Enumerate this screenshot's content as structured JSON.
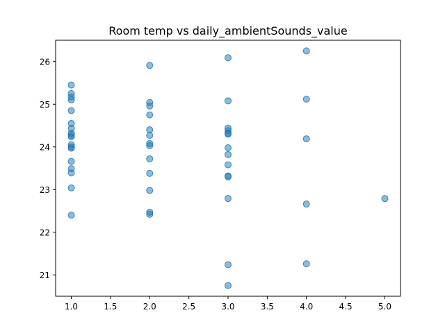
{
  "chart_data": {
    "type": "scatter",
    "title": "Room temp vs daily_ambientSounds_value",
    "xlabel": "",
    "ylabel": "",
    "xlim": [
      0.8,
      5.2
    ],
    "ylim": [
      20.5,
      26.5
    ],
    "xticks": [
      1.0,
      1.5,
      2.0,
      2.5,
      3.0,
      3.5,
      4.0,
      4.5,
      5.0
    ],
    "xtick_labels": [
      "1.0",
      "1.5",
      "2.0",
      "2.5",
      "3.0",
      "3.5",
      "4.0",
      "4.5",
      "5.0"
    ],
    "yticks": [
      21,
      22,
      23,
      24,
      25,
      26
    ],
    "ytick_labels": [
      "21",
      "22",
      "23",
      "24",
      "25",
      "26"
    ],
    "grid": false,
    "point_color": "#1f77b4",
    "point_alpha": 0.5,
    "points": [
      {
        "x": 1,
        "y": 25.45
      },
      {
        "x": 1,
        "y": 25.25
      },
      {
        "x": 1,
        "y": 25.17
      },
      {
        "x": 1,
        "y": 25.1
      },
      {
        "x": 1,
        "y": 24.85
      },
      {
        "x": 1,
        "y": 24.55
      },
      {
        "x": 1,
        "y": 24.43
      },
      {
        "x": 1,
        "y": 24.32
      },
      {
        "x": 1,
        "y": 24.27
      },
      {
        "x": 1,
        "y": 24.24
      },
      {
        "x": 1,
        "y": 24.05
      },
      {
        "x": 1,
        "y": 24.0
      },
      {
        "x": 1,
        "y": 23.97
      },
      {
        "x": 1,
        "y": 23.66
      },
      {
        "x": 1,
        "y": 23.49
      },
      {
        "x": 1,
        "y": 23.39
      },
      {
        "x": 1,
        "y": 23.04
      },
      {
        "x": 1,
        "y": 22.4
      },
      {
        "x": 2,
        "y": 25.91
      },
      {
        "x": 2,
        "y": 25.04
      },
      {
        "x": 2,
        "y": 24.96
      },
      {
        "x": 2,
        "y": 24.75
      },
      {
        "x": 2,
        "y": 24.4
      },
      {
        "x": 2,
        "y": 24.27
      },
      {
        "x": 2,
        "y": 24.08
      },
      {
        "x": 2,
        "y": 24.03
      },
      {
        "x": 2,
        "y": 23.72
      },
      {
        "x": 2,
        "y": 23.38
      },
      {
        "x": 2,
        "y": 22.98
      },
      {
        "x": 2,
        "y": 22.47
      },
      {
        "x": 2,
        "y": 22.42
      },
      {
        "x": 3,
        "y": 26.09
      },
      {
        "x": 3,
        "y": 25.08
      },
      {
        "x": 3,
        "y": 24.44
      },
      {
        "x": 3,
        "y": 24.38
      },
      {
        "x": 3,
        "y": 24.32
      },
      {
        "x": 3,
        "y": 24.3
      },
      {
        "x": 3,
        "y": 23.98
      },
      {
        "x": 3,
        "y": 23.82
      },
      {
        "x": 3,
        "y": 23.58
      },
      {
        "x": 3,
        "y": 23.32
      },
      {
        "x": 3,
        "y": 23.3
      },
      {
        "x": 3,
        "y": 22.79
      },
      {
        "x": 3,
        "y": 21.24
      },
      {
        "x": 3,
        "y": 20.75
      },
      {
        "x": 4,
        "y": 26.25
      },
      {
        "x": 4,
        "y": 25.12
      },
      {
        "x": 4,
        "y": 24.19
      },
      {
        "x": 4,
        "y": 22.66
      },
      {
        "x": 4,
        "y": 21.26
      },
      {
        "x": 5,
        "y": 22.79
      }
    ]
  }
}
